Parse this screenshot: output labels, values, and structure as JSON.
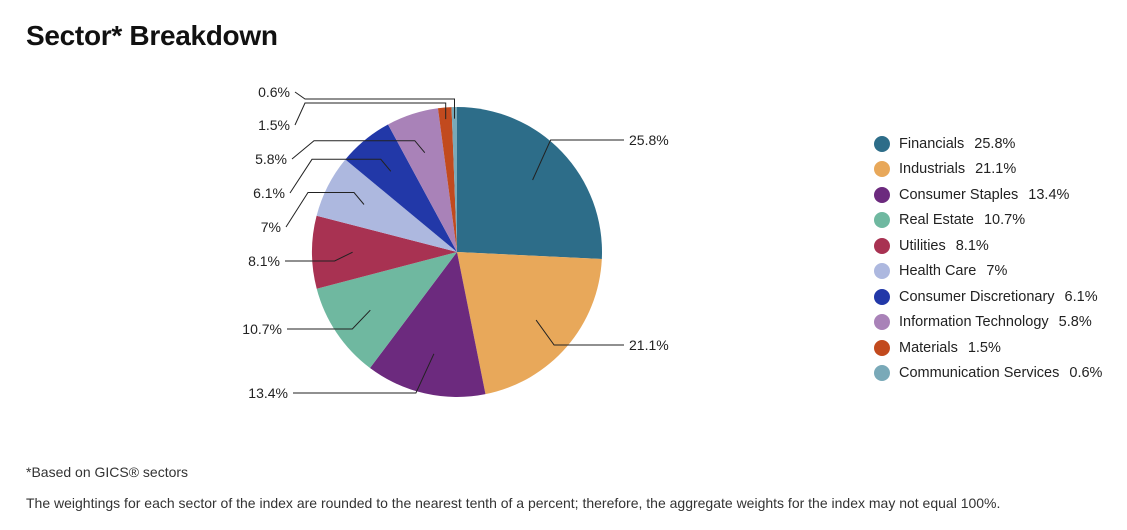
{
  "header": {
    "title": "Sector* Breakdown"
  },
  "footnotes": {
    "note1": "*Based on GICS® sectors",
    "note2": "The weightings for each sector of the index are rounded to the nearest tenth of a percent; therefore, the aggregate weights for the index may not equal 100%."
  },
  "chart_data": {
    "type": "pie",
    "title": "",
    "legend_placement": "right",
    "start": "12 o'clock, clockwise",
    "slices": [
      {
        "name": "Financials",
        "value": 25.8,
        "label": "25.8%",
        "color": "#2d6d89"
      },
      {
        "name": "Industrials",
        "value": 21.1,
        "label": "21.1%",
        "color": "#e8a85a"
      },
      {
        "name": "Consumer Staples",
        "value": 13.4,
        "label": "13.4%",
        "color": "#6c2a7e"
      },
      {
        "name": "Real Estate",
        "value": 10.7,
        "label": "10.7%",
        "color": "#6fb8a0"
      },
      {
        "name": "Utilities",
        "value": 8.1,
        "label": "8.1%",
        "color": "#a83252"
      },
      {
        "name": "Health Care",
        "value": 7,
        "label": "7%",
        "color": "#adb8df"
      },
      {
        "name": "Consumer Discretionary",
        "value": 6.1,
        "label": "6.1%",
        "color": "#2238a8"
      },
      {
        "name": "Information Technology",
        "value": 5.8,
        "label": "5.8%",
        "color": "#a982b8"
      },
      {
        "name": "Materials",
        "value": 1.5,
        "label": "1.5%",
        "color": "#c24a1e"
      },
      {
        "name": "Communication Services",
        "value": 0.6,
        "label": "0.6%",
        "color": "#79a9b8"
      }
    ]
  }
}
